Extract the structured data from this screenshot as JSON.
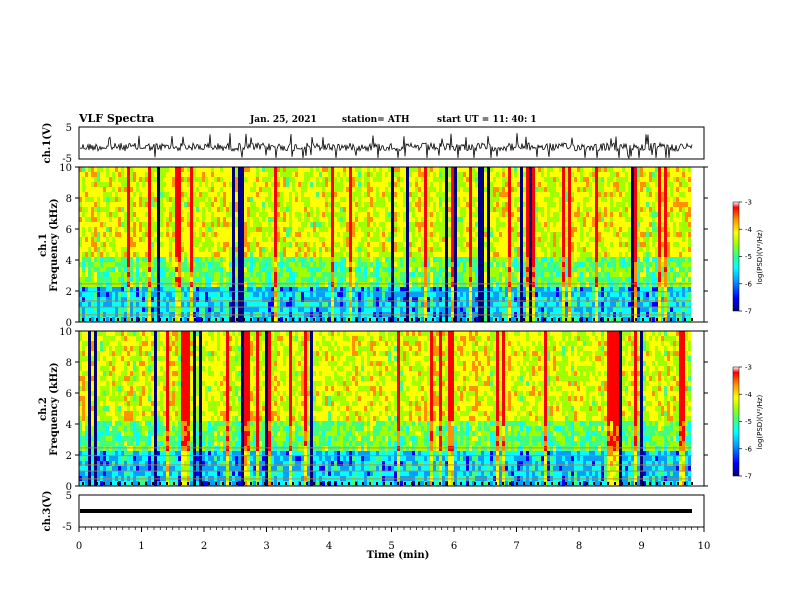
{
  "header": {
    "title": "VLF Spectra",
    "date": "Jan. 25, 2021",
    "station": "station= ATH",
    "start": "start UT = 11: 40: 1"
  },
  "chart_data": [
    {
      "type": "line",
      "panel": "ch1-waveform",
      "ylabel": "ch.1(V)",
      "ylim": [
        -5,
        5
      ],
      "yticks": [
        "5",
        "-5"
      ],
      "xlim": [
        0,
        10
      ]
    },
    {
      "type": "heatmap",
      "panel": "ch1-spectrogram",
      "ylabel": "ch.1 Frequency (kHz)",
      "ylim": [
        0,
        10
      ],
      "yticks": [
        "0",
        "2",
        "4",
        "6",
        "8",
        "10"
      ],
      "xlim": [
        0,
        10
      ],
      "colorbar": {
        "label": "log(PSD)(V²/Hz)",
        "range": [
          -7,
          -3
        ],
        "ticks": [
          "-3",
          "-4",
          "-5",
          "-6",
          "-7"
        ]
      }
    },
    {
      "type": "heatmap",
      "panel": "ch2-spectrogram",
      "ylabel": "ch.2 Frequency (kHz)",
      "ylim": [
        0,
        10
      ],
      "yticks": [
        "0",
        "2",
        "4",
        "6",
        "8",
        "10"
      ],
      "xlim": [
        0,
        10
      ],
      "colorbar": {
        "label": "log(PSD)(V²/Hz)",
        "range": [
          -7,
          -3
        ],
        "ticks": [
          "-3",
          "-4",
          "-5",
          "-6",
          "-7"
        ]
      }
    },
    {
      "type": "line",
      "panel": "ch3-waveform",
      "ylabel": "ch.3(V)",
      "ylim": [
        -5,
        5
      ],
      "yticks": [
        "5",
        "-5"
      ],
      "xlim": [
        0,
        10
      ],
      "xlabel": "Time (min)",
      "xticks": [
        "0",
        "1",
        "2",
        "3",
        "4",
        "5",
        "6",
        "7",
        "8",
        "9",
        "10"
      ]
    }
  ],
  "colors": {
    "colormap": [
      "#000080",
      "#0000ff",
      "#00a0ff",
      "#00ffff",
      "#40ff80",
      "#a0ff00",
      "#ffff00",
      "#ff9000",
      "#ff0000",
      "#ffffff"
    ]
  }
}
